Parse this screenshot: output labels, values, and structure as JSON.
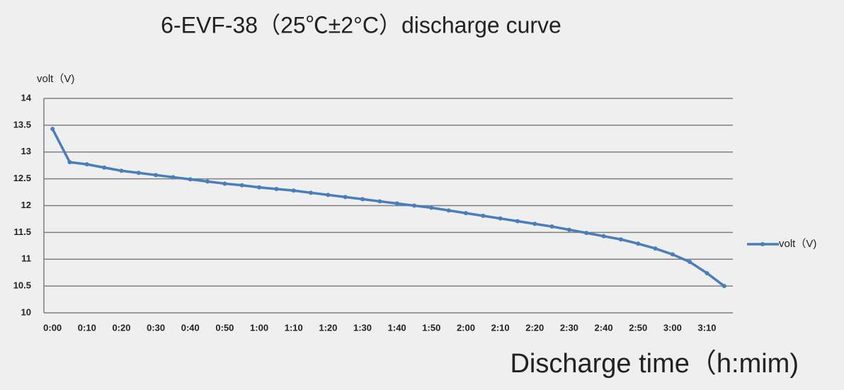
{
  "chart_data": {
    "type": "line",
    "title": "6-EVF-38（25℃±2°C）discharge curve",
    "y_label": "volt（V)",
    "x_label": "Discharge time（h:mim)",
    "categories": [
      "0:00",
      null,
      "0:10",
      null,
      "0:20",
      null,
      "0:30",
      null,
      "0:40",
      null,
      "0:50",
      null,
      "1:00",
      null,
      "1:10",
      null,
      "1:20",
      null,
      "1:30",
      null,
      "1:40",
      null,
      "1:50",
      null,
      "2:00",
      null,
      "2:10",
      null,
      "2:20",
      null,
      "2:30",
      null,
      "2:40",
      null,
      "2:50",
      null,
      "3:00",
      null,
      "3:10",
      null
    ],
    "series": [
      {
        "name": "volt（V)",
        "color": "#4a7ebb",
        "values": [
          13.43,
          12.81,
          12.77,
          12.71,
          12.65,
          12.61,
          12.57,
          12.53,
          12.49,
          12.45,
          12.41,
          12.38,
          12.34,
          12.31,
          12.28,
          12.24,
          12.2,
          12.16,
          12.12,
          12.08,
          12.04,
          12.0,
          11.96,
          11.91,
          11.86,
          11.81,
          11.76,
          11.71,
          11.66,
          11.61,
          11.55,
          11.49,
          11.43,
          11.37,
          11.29,
          11.2,
          11.09,
          10.95,
          10.74,
          10.5
        ]
      }
    ],
    "ylim": [
      10,
      14
    ],
    "yticks": [
      10,
      10.5,
      11,
      11.5,
      12,
      12.5,
      13,
      13.5,
      14
    ],
    "grid": true,
    "legend": "right"
  }
}
